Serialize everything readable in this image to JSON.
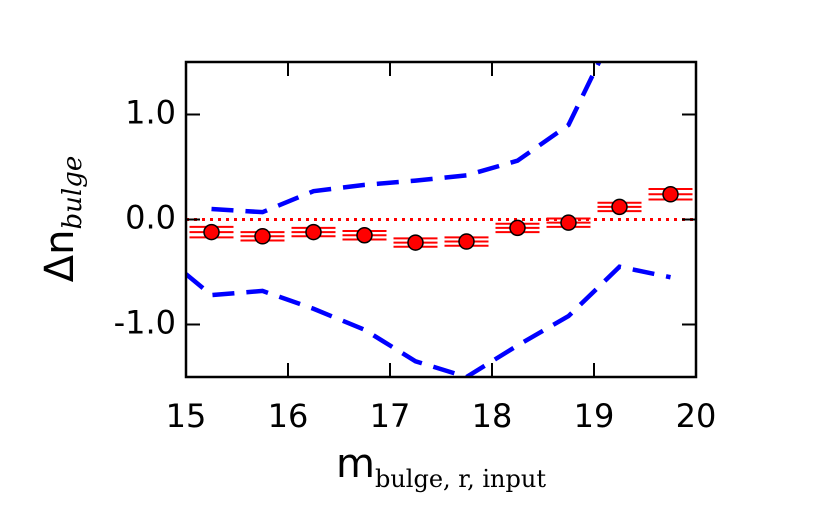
{
  "chart_data": {
    "type": "scatter",
    "x_label": {
      "main": "m",
      "sub": "bulge, r, input"
    },
    "y_label": {
      "main": "Δn",
      "sub": "bulge"
    },
    "xlim": [
      15,
      20
    ],
    "ylim": [
      -1.5,
      1.5
    ],
    "xticks": [
      15,
      16,
      17,
      18,
      19,
      20
    ],
    "yticks": [
      {
        "value": -1,
        "label": "-1.0"
      },
      {
        "value": 0,
        "label": "0.0"
      },
      {
        "value": 1,
        "label": "1.0"
      }
    ],
    "x": [
      15.25,
      15.75,
      16.25,
      16.75,
      17.25,
      17.75,
      18.25,
      18.75,
      19.25,
      19.75
    ],
    "values": [
      -0.12,
      -0.16,
      -0.12,
      -0.15,
      -0.22,
      -0.21,
      -0.08,
      -0.03,
      0.12,
      0.24
    ],
    "errors": [
      0.05,
      0.04,
      0.04,
      0.04,
      0.04,
      0.04,
      0.04,
      0.04,
      0.04,
      0.05
    ],
    "color": "#ff0000",
    "reference_line": {
      "value": 0,
      "color": "#ff0000"
    },
    "lines": [
      {
        "color": "#0000ff",
        "x": [
          15.25,
          15.75,
          16.25,
          16.75,
          17.25,
          17.75,
          18.25,
          18.75,
          19.05
        ],
        "values": [
          0.1,
          0.07,
          0.27,
          0.33,
          0.37,
          0.42,
          0.56,
          0.9,
          1.5
        ]
      },
      {
        "color": "#0000ff",
        "x": [
          15.0,
          15.25,
          15.75,
          16.25,
          16.75,
          17.25,
          17.75,
          18.25,
          18.75,
          19.25,
          19.75
        ],
        "values": [
          -0.52,
          -0.72,
          -0.68,
          -0.85,
          -1.05,
          -1.35,
          -1.5,
          -1.2,
          -0.92,
          -0.45,
          -0.55
        ]
      }
    ]
  }
}
